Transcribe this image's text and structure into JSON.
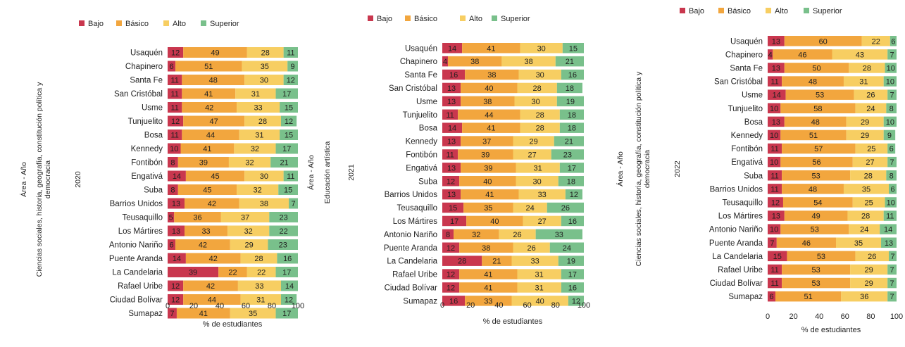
{
  "colors": {
    "Bajo": "#c9374e",
    "Básico": "#f2a63e",
    "Alto": "#f7ce62",
    "Superior": "#79c08b"
  },
  "chart_data": [
    {
      "type": "bar",
      "orientation": "horizontal-stacked",
      "legend_position": "top",
      "area_label": "Área - Año",
      "subject": "Ciencias sociales, historia, geografía, constitución política y democracia",
      "year": "2020",
      "xlabel": "% de estudiantes",
      "xlim": [
        0,
        100
      ],
      "xticks": [
        "0",
        "20",
        "40",
        "60",
        "80",
        "100"
      ],
      "categories": [
        "Usaquén",
        "Chapinero",
        "Santa Fe",
        "San Cristóbal",
        "Usme",
        "Tunjuelito",
        "Bosa",
        "Kennedy",
        "Fontibón",
        "Engativá",
        "Suba",
        "Barrios Unidos",
        "Teusaquillo",
        "Los Mártires",
        "Antonio Nariño",
        "Puente Aranda",
        "La Candelaria",
        "Rafael Uribe",
        "Ciudad Bolívar",
        "Sumapaz"
      ],
      "series": [
        {
          "name": "Bajo",
          "values": [
            12,
            6,
            11,
            11,
            11,
            12,
            11,
            10,
            8,
            14,
            8,
            13,
            5,
            13,
            6,
            14,
            39,
            12,
            12,
            7
          ]
        },
        {
          "name": "Básico",
          "values": [
            49,
            51,
            48,
            41,
            42,
            47,
            44,
            41,
            39,
            45,
            45,
            42,
            36,
            33,
            42,
            42,
            22,
            42,
            44,
            41
          ]
        },
        {
          "name": "Alto",
          "values": [
            28,
            35,
            30,
            31,
            33,
            28,
            31,
            32,
            32,
            30,
            32,
            38,
            37,
            32,
            29,
            28,
            22,
            33,
            31,
            35
          ]
        },
        {
          "name": "Superior",
          "values": [
            11,
            9,
            12,
            17,
            15,
            12,
            15,
            17,
            21,
            11,
            15,
            7,
            23,
            22,
            23,
            16,
            17,
            14,
            12,
            17
          ]
        }
      ]
    },
    {
      "type": "bar",
      "orientation": "horizontal-stacked",
      "legend_position": "top",
      "area_label": "Área - Año",
      "subject": "Educación artística",
      "year": "2021",
      "xlabel": "% de estudiantes",
      "xlim": [
        0,
        100
      ],
      "xticks": [
        "0",
        "20",
        "40",
        "60",
        "80",
        "100"
      ],
      "categories": [
        "Usaquén",
        "Chapinero",
        "Santa Fe",
        "San Cristóbal",
        "Usme",
        "Tunjuelito",
        "Bosa",
        "Kennedy",
        "Fontibón",
        "Engativá",
        "Suba",
        "Barrios Unidos",
        "Teusaquillo",
        "Los Mártires",
        "Antonio Nariño",
        "Puente Aranda",
        "La Candelaria",
        "Rafael Uribe",
        "Ciudad Bolívar",
        "Sumapaz"
      ],
      "series": [
        {
          "name": "Bajo",
          "values": [
            14,
            4,
            16,
            13,
            13,
            11,
            14,
            13,
            11,
            13,
            12,
            13,
            15,
            17,
            8,
            12,
            28,
            12,
            12,
            16
          ]
        },
        {
          "name": "Básico",
          "values": [
            41,
            38,
            38,
            40,
            38,
            44,
            41,
            37,
            39,
            39,
            40,
            41,
            35,
            40,
            32,
            38,
            21,
            41,
            41,
            33
          ]
        },
        {
          "name": "Alto",
          "values": [
            30,
            38,
            30,
            28,
            30,
            28,
            28,
            29,
            27,
            31,
            30,
            33,
            24,
            27,
            26,
            26,
            33,
            31,
            31,
            40
          ]
        },
        {
          "name": "Superior",
          "values": [
            15,
            21,
            16,
            18,
            19,
            18,
            18,
            21,
            23,
            17,
            18,
            12,
            26,
            16,
            33,
            24,
            19,
            17,
            16,
            12
          ]
        }
      ]
    },
    {
      "type": "bar",
      "orientation": "horizontal-stacked",
      "legend_position": "top",
      "area_label": "Área - Año",
      "subject": "Ciencias sociales, historia, geografía, constitución política y democracia",
      "year": "2022",
      "xlabel": "% de estudiantes",
      "xlim": [
        0,
        100
      ],
      "xticks": [
        "0",
        "20",
        "40",
        "60",
        "80",
        "100"
      ],
      "categories": [
        "Usaquén",
        "Chapinero",
        "Santa Fe",
        "San Cristóbal",
        "Usme",
        "Tunjuelito",
        "Bosa",
        "Kennedy",
        "Fontibón",
        "Engativá",
        "Suba",
        "Barrios Unidos",
        "Teusaquillo",
        "Los Mártires",
        "Antonio Nariño",
        "Puente Aranda",
        "La Candelaria",
        "Rafael Uribe",
        "Ciudad Bolívar",
        "Sumapaz"
      ],
      "series": [
        {
          "name": "Bajo",
          "values": [
            13,
            4,
            13,
            11,
            14,
            10,
            13,
            10,
            11,
            10,
            11,
            11,
            12,
            13,
            10,
            7,
            15,
            11,
            11,
            6
          ]
        },
        {
          "name": "Básico",
          "values": [
            60,
            46,
            50,
            48,
            53,
            58,
            48,
            51,
            57,
            56,
            53,
            48,
            54,
            49,
            53,
            46,
            53,
            53,
            53,
            51
          ]
        },
        {
          "name": "Alto",
          "values": [
            22,
            43,
            28,
            31,
            26,
            24,
            29,
            29,
            25,
            27,
            28,
            35,
            25,
            28,
            24,
            35,
            26,
            29,
            29,
            36
          ]
        },
        {
          "name": "Superior",
          "values": [
            6,
            7,
            10,
            10,
            7,
            8,
            10,
            9,
            6,
            7,
            8,
            6,
            10,
            11,
            14,
            13,
            7,
            7,
            7,
            7
          ]
        }
      ]
    }
  ]
}
